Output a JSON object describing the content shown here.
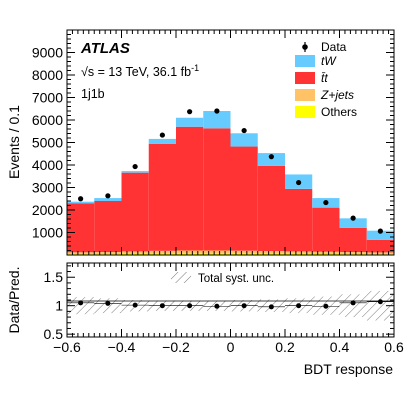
{
  "chart_data": [
    {
      "type": "bar",
      "stacked": true,
      "bin_edges": [
        -0.6,
        -0.5,
        -0.4,
        -0.3,
        -0.2,
        -0.1,
        0.0,
        0.1,
        0.2,
        0.3,
        0.4,
        0.5,
        0.6
      ],
      "ylabel": "Events / 0.1",
      "ylim": [
        0,
        10000
      ],
      "yticks": [
        1000,
        2000,
        3000,
        4000,
        5000,
        6000,
        7000,
        8000,
        9000
      ],
      "annotations": {
        "atlas": "ATLAS",
        "energy": "√s = 13 TeV, 36.1 fb",
        "energy_sup": "-1",
        "region": "1j1b"
      },
      "legend_position": "top-right",
      "series": [
        {
          "name": "Others",
          "color": "#ffff00",
          "values": [
            40,
            40,
            50,
            55,
            60,
            60,
            60,
            55,
            50,
            45,
            40,
            35
          ]
        },
        {
          "name": "Z+jets",
          "color": "#ffc266",
          "values": [
            80,
            90,
            110,
            130,
            140,
            140,
            130,
            120,
            110,
            100,
            90,
            80
          ]
        },
        {
          "name": "t̄t",
          "color": "#ff3333",
          "values": [
            2180,
            2270,
            3500,
            4750,
            5500,
            5430,
            4630,
            3790,
            2780,
            1960,
            1080,
            560
          ]
        },
        {
          "name": "tW",
          "color": "#66ccff",
          "values": [
            70,
            130,
            70,
            225,
            400,
            770,
            590,
            565,
            640,
            425,
            420,
            405
          ]
        }
      ],
      "data": {
        "name": "Data",
        "values": [
          2500,
          2630,
          3930,
          5330,
          6370,
          6400,
          5530,
          4370,
          3220,
          2330,
          1640,
          1060
        ]
      }
    },
    {
      "type": "scatter",
      "xlabel": "BDT response",
      "ylabel": "Data/Pred.",
      "xlim": [
        -0.6,
        0.6
      ],
      "ylim": [
        0.45,
        1.75
      ],
      "xticks": [
        -0.6,
        -0.4,
        -0.2,
        0,
        0.2,
        0.4,
        0.6
      ],
      "xtick_labels": [
        "−0.6",
        "−0.4",
        "−0.2",
        "0",
        "0.2",
        "0.4",
        "0.6"
      ],
      "yticks": [
        0.5,
        1,
        1.5
      ],
      "ytick_labels": [
        "0.5",
        "1",
        "1.5"
      ],
      "legend": "Total syst. unc.",
      "x": [
        -0.55,
        -0.45,
        -0.35,
        -0.25,
        -0.15,
        -0.05,
        0.05,
        0.15,
        0.25,
        0.35,
        0.45,
        0.55
      ],
      "ratio": [
        1.05,
        1.04,
        1.01,
        1.0,
        1.0,
        0.99,
        1.0,
        0.98,
        1.0,
        0.99,
        1.05,
        1.07
      ],
      "syst_unc": [
        0.15,
        0.13,
        0.1,
        0.09,
        0.09,
        0.09,
        0.1,
        0.11,
        0.13,
        0.16,
        0.2,
        0.26
      ]
    }
  ]
}
